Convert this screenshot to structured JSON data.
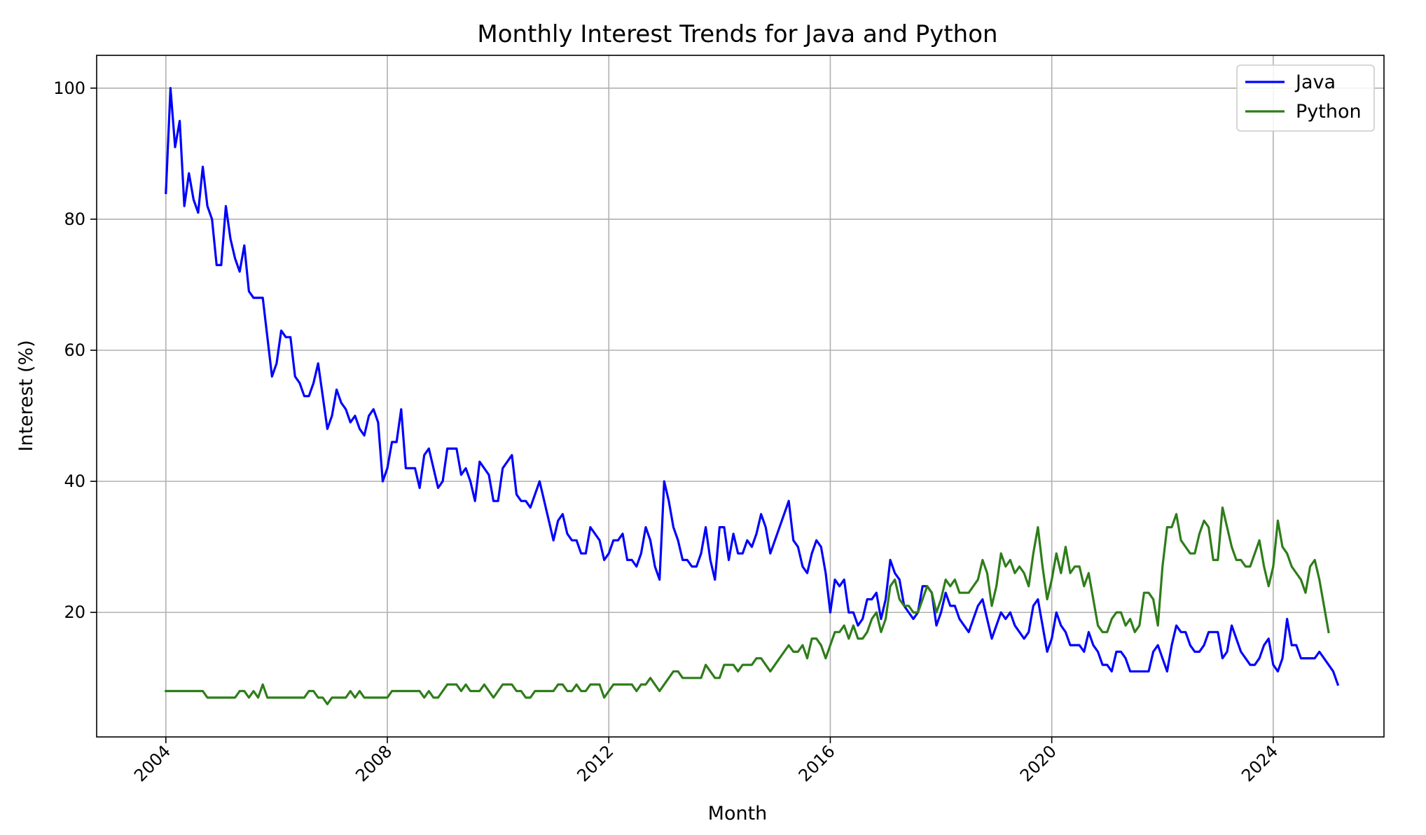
{
  "chart_data": {
    "type": "line",
    "title": "Monthly Interest Trends for Java and Python",
    "xlabel": "Month",
    "ylabel": "Interest (%)",
    "xlim": [
      2002.75,
      2026.0
    ],
    "ylim": [
      1,
      105
    ],
    "x_ticks": [
      2004,
      2008,
      2012,
      2016,
      2020,
      2024
    ],
    "x_tick_labels": [
      "2004",
      "2008",
      "2012",
      "2016",
      "2020",
      "2024"
    ],
    "y_ticks": [
      20,
      40,
      60,
      80,
      100
    ],
    "y_tick_labels": [
      "20",
      "40",
      "60",
      "80",
      "100"
    ],
    "grid": true,
    "legend_position": "top-right",
    "x_start": "2004-01",
    "x_step": "1 month",
    "series": [
      {
        "name": "Java",
        "color": "#0000ff",
        "values": [
          84,
          100,
          91,
          95,
          82,
          87,
          83,
          81,
          88,
          82,
          80,
          73,
          73,
          82,
          77,
          74,
          72,
          76,
          69,
          68,
          68,
          68,
          62,
          56,
          58,
          63,
          62,
          62,
          56,
          55,
          53,
          53,
          55,
          58,
          53,
          48,
          50,
          54,
          52,
          51,
          49,
          50,
          48,
          47,
          50,
          51,
          49,
          40,
          42,
          46,
          46,
          51,
          42,
          42,
          42,
          39,
          44,
          45,
          42,
          39,
          40,
          45,
          45,
          45,
          41,
          42,
          40,
          37,
          43,
          42,
          41,
          37,
          37,
          42,
          43,
          44,
          38,
          37,
          37,
          36,
          38,
          40,
          37,
          34,
          31,
          34,
          35,
          32,
          31,
          31,
          29,
          29,
          33,
          32,
          31,
          28,
          29,
          31,
          31,
          32,
          28,
          28,
          27,
          29,
          33,
          31,
          27,
          25,
          40,
          37,
          33,
          31,
          28,
          28,
          27,
          27,
          29,
          33,
          28,
          25,
          33,
          33,
          28,
          32,
          29,
          29,
          31,
          30,
          32,
          35,
          33,
          29,
          31,
          33,
          35,
          37,
          31,
          30,
          27,
          26,
          29,
          31,
          30,
          26,
          20,
          25,
          24,
          25,
          20,
          20,
          18,
          19,
          22,
          22,
          23,
          19,
          22,
          28,
          26,
          25,
          21,
          20,
          19,
          20,
          24,
          24,
          23,
          18,
          20,
          23,
          21,
          21,
          19,
          18,
          17,
          19,
          21,
          22,
          19,
          16,
          18,
          20,
          19,
          20,
          18,
          17,
          16,
          17,
          21,
          22,
          18,
          14,
          16,
          20,
          18,
          17,
          15,
          15,
          15,
          14,
          17,
          15,
          14,
          12,
          12,
          11,
          14,
          14,
          13,
          11,
          11,
          11,
          11,
          11,
          14,
          15,
          13,
          11,
          15,
          18,
          17,
          17,
          15,
          14,
          14,
          15,
          17,
          17,
          17,
          13,
          14,
          18,
          16,
          14,
          13,
          12,
          12,
          13,
          15,
          16,
          12,
          11,
          13,
          19,
          15,
          15,
          13,
          13,
          13,
          13,
          14,
          13,
          12,
          11,
          9
        ]
      },
      {
        "name": "Python",
        "color": "#2e7d1a",
        "values": [
          8,
          8,
          8,
          8,
          8,
          8,
          8,
          8,
          8,
          7,
          7,
          7,
          7,
          7,
          7,
          7,
          8,
          8,
          7,
          8,
          7,
          9,
          7,
          7,
          7,
          7,
          7,
          7,
          7,
          7,
          7,
          8,
          8,
          7,
          7,
          6,
          7,
          7,
          7,
          7,
          8,
          7,
          8,
          7,
          7,
          7,
          7,
          7,
          7,
          8,
          8,
          8,
          8,
          8,
          8,
          8,
          7,
          8,
          7,
          7,
          8,
          9,
          9,
          9,
          8,
          9,
          8,
          8,
          8,
          9,
          8,
          7,
          8,
          9,
          9,
          9,
          8,
          8,
          7,
          7,
          8,
          8,
          8,
          8,
          8,
          9,
          9,
          8,
          8,
          9,
          8,
          8,
          9,
          9,
          9,
          7,
          8,
          9,
          9,
          9,
          9,
          9,
          8,
          9,
          9,
          10,
          9,
          8,
          9,
          10,
          11,
          11,
          10,
          10,
          10,
          10,
          10,
          12,
          11,
          10,
          10,
          12,
          12,
          12,
          11,
          12,
          12,
          12,
          13,
          13,
          12,
          11,
          12,
          13,
          14,
          15,
          14,
          14,
          15,
          13,
          16,
          16,
          15,
          13,
          15,
          17,
          17,
          18,
          16,
          18,
          16,
          16,
          17,
          19,
          20,
          17,
          19,
          24,
          25,
          22,
          21,
          21,
          20,
          20,
          22,
          24,
          23,
          20,
          22,
          25,
          24,
          25,
          23,
          23,
          23,
          24,
          25,
          28,
          26,
          21,
          24,
          29,
          27,
          28,
          26,
          27,
          26,
          24,
          29,
          33,
          27,
          22,
          25,
          29,
          26,
          30,
          26,
          27,
          27,
          24,
          26,
          22,
          18,
          17,
          17,
          19,
          20,
          20,
          18,
          19,
          17,
          18,
          23,
          23,
          22,
          18,
          27,
          33,
          33,
          35,
          31,
          30,
          29,
          29,
          32,
          34,
          33,
          28,
          28,
          36,
          33,
          30,
          28,
          28,
          27,
          27,
          29,
          31,
          27,
          24,
          27,
          34,
          30,
          29,
          27,
          26,
          25,
          23,
          27,
          28,
          25,
          21,
          17
        ]
      }
    ]
  }
}
